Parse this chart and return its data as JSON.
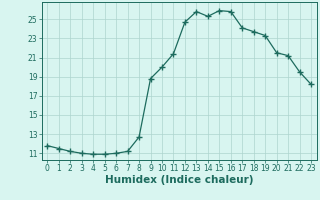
{
  "x": [
    0,
    1,
    2,
    3,
    4,
    5,
    6,
    7,
    8,
    9,
    10,
    11,
    12,
    13,
    14,
    15,
    16,
    17,
    18,
    19,
    20,
    21,
    22,
    23
  ],
  "y": [
    11.8,
    11.5,
    11.2,
    11.0,
    10.9,
    10.9,
    11.0,
    11.2,
    12.7,
    18.8,
    20.0,
    21.4,
    24.7,
    25.8,
    25.3,
    25.9,
    25.8,
    24.1,
    23.7,
    23.3,
    21.5,
    21.2,
    19.5,
    18.2
  ],
  "line_color": "#1d6b5e",
  "marker": "+",
  "marker_size": 4,
  "bg_color": "#d8f5f0",
  "grid_color": "#aed4ce",
  "xlabel": "Humidex (Indice chaleur)",
  "ytick_values": [
    11,
    13,
    15,
    17,
    19,
    21,
    23,
    25
  ],
  "xtick_labels": [
    "0",
    "1",
    "2",
    "3",
    "4",
    "5",
    "6",
    "7",
    "8",
    "9",
    "10",
    "11",
    "12",
    "13",
    "14",
    "15",
    "16",
    "17",
    "18",
    "19",
    "20",
    "21",
    "22",
    "23"
  ],
  "ylim": [
    10.3,
    26.8
  ],
  "xlim": [
    -0.5,
    23.5
  ],
  "tick_fontsize": 5.5,
  "xlabel_fontsize": 7.5
}
